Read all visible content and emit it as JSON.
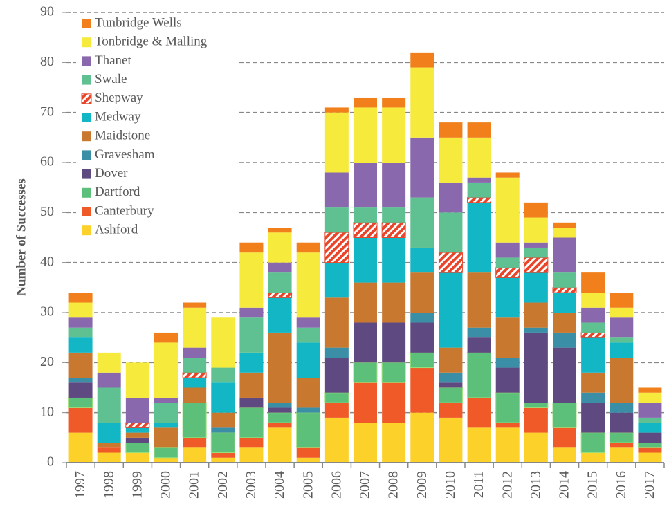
{
  "chart_data": {
    "type": "stacked_bar",
    "ylabel": "Number of Successes",
    "categories": [
      "1997",
      "1998",
      "1999",
      "2000",
      "2001",
      "2002",
      "2003",
      "2004",
      "2005",
      "2006",
      "2007",
      "2008",
      "2009",
      "2010",
      "2011",
      "2012",
      "2013",
      "2014",
      "2015",
      "2016",
      "2017"
    ],
    "ylim": [
      0,
      90
    ],
    "yticks": [
      0,
      10,
      20,
      30,
      40,
      50,
      60,
      70,
      80,
      90
    ],
    "grid": true,
    "legend": "upper left",
    "series": [
      {
        "name": "Ashford",
        "color": "#fcd12a",
        "values": [
          6,
          2,
          2,
          1,
          3,
          1,
          3,
          7,
          1,
          9,
          8,
          8,
          10,
          9,
          7,
          7,
          6,
          3,
          2,
          3,
          2
        ]
      },
      {
        "name": "Canterbury",
        "color": "#ef5a28",
        "values": [
          5,
          1,
          0,
          0,
          2,
          1,
          2,
          1,
          2,
          3,
          8,
          8,
          9,
          3,
          6,
          1,
          5,
          4,
          0,
          1,
          1
        ]
      },
      {
        "name": "Dartford",
        "color": "#5cbf7a",
        "values": [
          2,
          0,
          2,
          2,
          7,
          4,
          6,
          2,
          7,
          2,
          4,
          4,
          3,
          3,
          9,
          6,
          1,
          5,
          4,
          2,
          1
        ]
      },
      {
        "name": "Dover",
        "color": "#5e4a80",
        "values": [
          3,
          0,
          1,
          0,
          0,
          0,
          2,
          1,
          0,
          7,
          8,
          8,
          6,
          1,
          3,
          5,
          14,
          11,
          6,
          4,
          2
        ]
      },
      {
        "name": "Gravesham",
        "color": "#3a8ea6",
        "values": [
          1,
          0,
          0,
          0,
          0,
          1,
          0,
          1,
          1,
          2,
          0,
          0,
          2,
          2,
          2,
          2,
          1,
          3,
          2,
          2,
          0
        ]
      },
      {
        "name": "Maidstone",
        "color": "#c8782f",
        "values": [
          5,
          1,
          1,
          4,
          3,
          3,
          5,
          14,
          6,
          10,
          8,
          8,
          8,
          5,
          11,
          8,
          5,
          4,
          4,
          9,
          0
        ]
      },
      {
        "name": "Medway",
        "color": "#13b6c4",
        "values": [
          3,
          4,
          1,
          1,
          2,
          6,
          4,
          7,
          7,
          7,
          9,
          9,
          5,
          15,
          14,
          8,
          6,
          4,
          7,
          3,
          2
        ]
      },
      {
        "name": "Shepway",
        "color": "#e8452a",
        "hatch": true,
        "values": [
          0,
          0,
          1,
          0,
          1,
          0,
          0,
          1,
          0,
          6,
          3,
          3,
          0,
          4,
          1,
          2,
          3,
          1,
          1,
          0,
          0
        ]
      },
      {
        "name": "Swale",
        "color": "#5fc192",
        "values": [
          2,
          7,
          0,
          4,
          3,
          3,
          7,
          4,
          3,
          5,
          3,
          3,
          10,
          8,
          3,
          2,
          2,
          3,
          2,
          1,
          1
        ]
      },
      {
        "name": "Thanet",
        "color": "#8a68ad",
        "values": [
          2,
          3,
          5,
          1,
          2,
          0,
          2,
          2,
          2,
          7,
          9,
          9,
          12,
          6,
          1,
          3,
          1,
          7,
          3,
          4,
          3
        ]
      },
      {
        "name": "Tonbridge & Malling",
        "color": "#f6ea3c",
        "values": [
          3,
          4,
          7,
          11,
          8,
          10,
          11,
          6,
          13,
          12,
          11,
          11,
          14,
          9,
          8,
          13,
          5,
          2,
          3,
          2,
          2
        ]
      },
      {
        "name": "Tunbridge Wells",
        "color": "#f07f1c",
        "values": [
          2,
          0,
          0,
          2,
          1,
          0,
          2,
          1,
          2,
          1,
          2,
          2,
          3,
          3,
          3,
          1,
          3,
          1,
          4,
          3,
          1
        ]
      }
    ]
  }
}
